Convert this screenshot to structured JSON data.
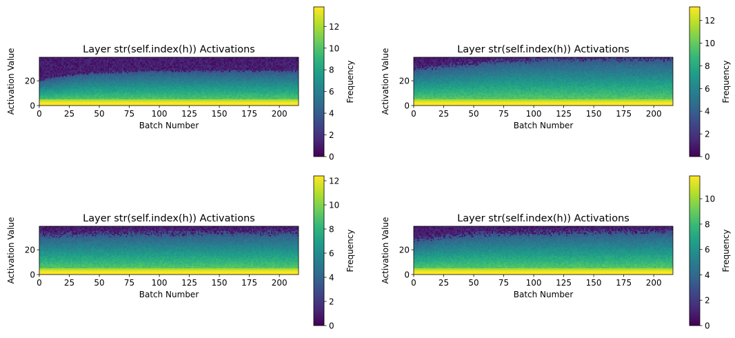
{
  "chart_data": [
    {
      "type": "heatmap",
      "title": "Layer str(self.index(h)) Activations",
      "xlabel": "Batch Number",
      "ylabel": "Activation Value",
      "xlim": [
        0,
        216
      ],
      "ylim": [
        0,
        39
      ],
      "x_ticks": [
        0,
        25,
        50,
        75,
        100,
        125,
        150,
        175,
        200
      ],
      "y_ticks": [
        0,
        20
      ],
      "colorbar": {
        "label": "Frequency",
        "min": 0,
        "max": 13.8,
        "ticks": [
          0,
          2,
          4,
          6,
          8,
          10,
          12
        ]
      },
      "colormap": "viridis",
      "upper_edge": [
        [
          0,
          20
        ],
        [
          10,
          22
        ],
        [
          25,
          24.5
        ],
        [
          50,
          26.5
        ],
        [
          75,
          27
        ],
        [
          100,
          27.8
        ],
        [
          150,
          28
        ],
        [
          216,
          28
        ]
      ],
      "edge_noise": 0.8,
      "density_peak": 13.8
    },
    {
      "type": "heatmap",
      "title": "Layer str(self.index(h)) Activations",
      "xlabel": "Batch Number",
      "ylabel": "Activation Value",
      "xlim": [
        0,
        216
      ],
      "ylim": [
        0,
        39
      ],
      "x_ticks": [
        0,
        25,
        50,
        75,
        100,
        125,
        150,
        175,
        200
      ],
      "y_ticks": [
        0,
        20
      ],
      "colorbar": {
        "label": "Frequency",
        "min": 0,
        "max": 13.2,
        "ticks": [
          0,
          2,
          4,
          6,
          8,
          10,
          12
        ]
      },
      "colormap": "viridis",
      "upper_edge": [
        [
          0,
          30
        ],
        [
          25,
          32
        ],
        [
          50,
          34
        ],
        [
          75,
          36
        ],
        [
          100,
          37
        ],
        [
          150,
          37.5
        ],
        [
          216,
          38
        ]
      ],
      "edge_noise": 2.5,
      "density_peak": 13.2
    },
    {
      "type": "heatmap",
      "title": "Layer str(self.index(h)) Activations",
      "xlabel": "Batch Number",
      "ylabel": "Activation Value",
      "xlim": [
        0,
        216
      ],
      "ylim": [
        0,
        39
      ],
      "x_ticks": [
        0,
        25,
        50,
        75,
        100,
        125,
        150,
        175,
        200
      ],
      "y_ticks": [
        0,
        20
      ],
      "colorbar": {
        "label": "Frequency",
        "min": 0,
        "max": 12.4,
        "ticks": [
          0,
          2,
          4,
          6,
          8,
          10,
          12
        ]
      },
      "colormap": "viridis",
      "upper_edge": [
        [
          0,
          32
        ],
        [
          50,
          33
        ],
        [
          100,
          33.5
        ],
        [
          216,
          34
        ]
      ],
      "edge_noise": 3,
      "density_peak": 12.4
    },
    {
      "type": "heatmap",
      "title": "Layer str(self.index(h)) Activations",
      "xlabel": "Batch Number",
      "ylabel": "Activation Value",
      "xlim": [
        0,
        216
      ],
      "ylim": [
        0,
        39
      ],
      "x_ticks": [
        0,
        25,
        50,
        75,
        100,
        125,
        150,
        175,
        200
      ],
      "y_ticks": [
        0,
        20
      ],
      "colorbar": {
        "label": "Frequency",
        "min": 0,
        "max": 11.8,
        "ticks": [
          0,
          2,
          4,
          6,
          8,
          10
        ]
      },
      "colormap": "viridis",
      "upper_edge": [
        [
          0,
          28
        ],
        [
          25,
          31
        ],
        [
          50,
          33
        ],
        [
          100,
          34
        ],
        [
          216,
          35
        ]
      ],
      "edge_noise": 3,
      "density_peak": 11.8
    }
  ],
  "colors": {
    "viridis": [
      "#440154",
      "#482878",
      "#3e4989",
      "#31688e",
      "#26828e",
      "#1f9e89",
      "#35b779",
      "#6ece58",
      "#b5de2b",
      "#fde725"
    ]
  }
}
